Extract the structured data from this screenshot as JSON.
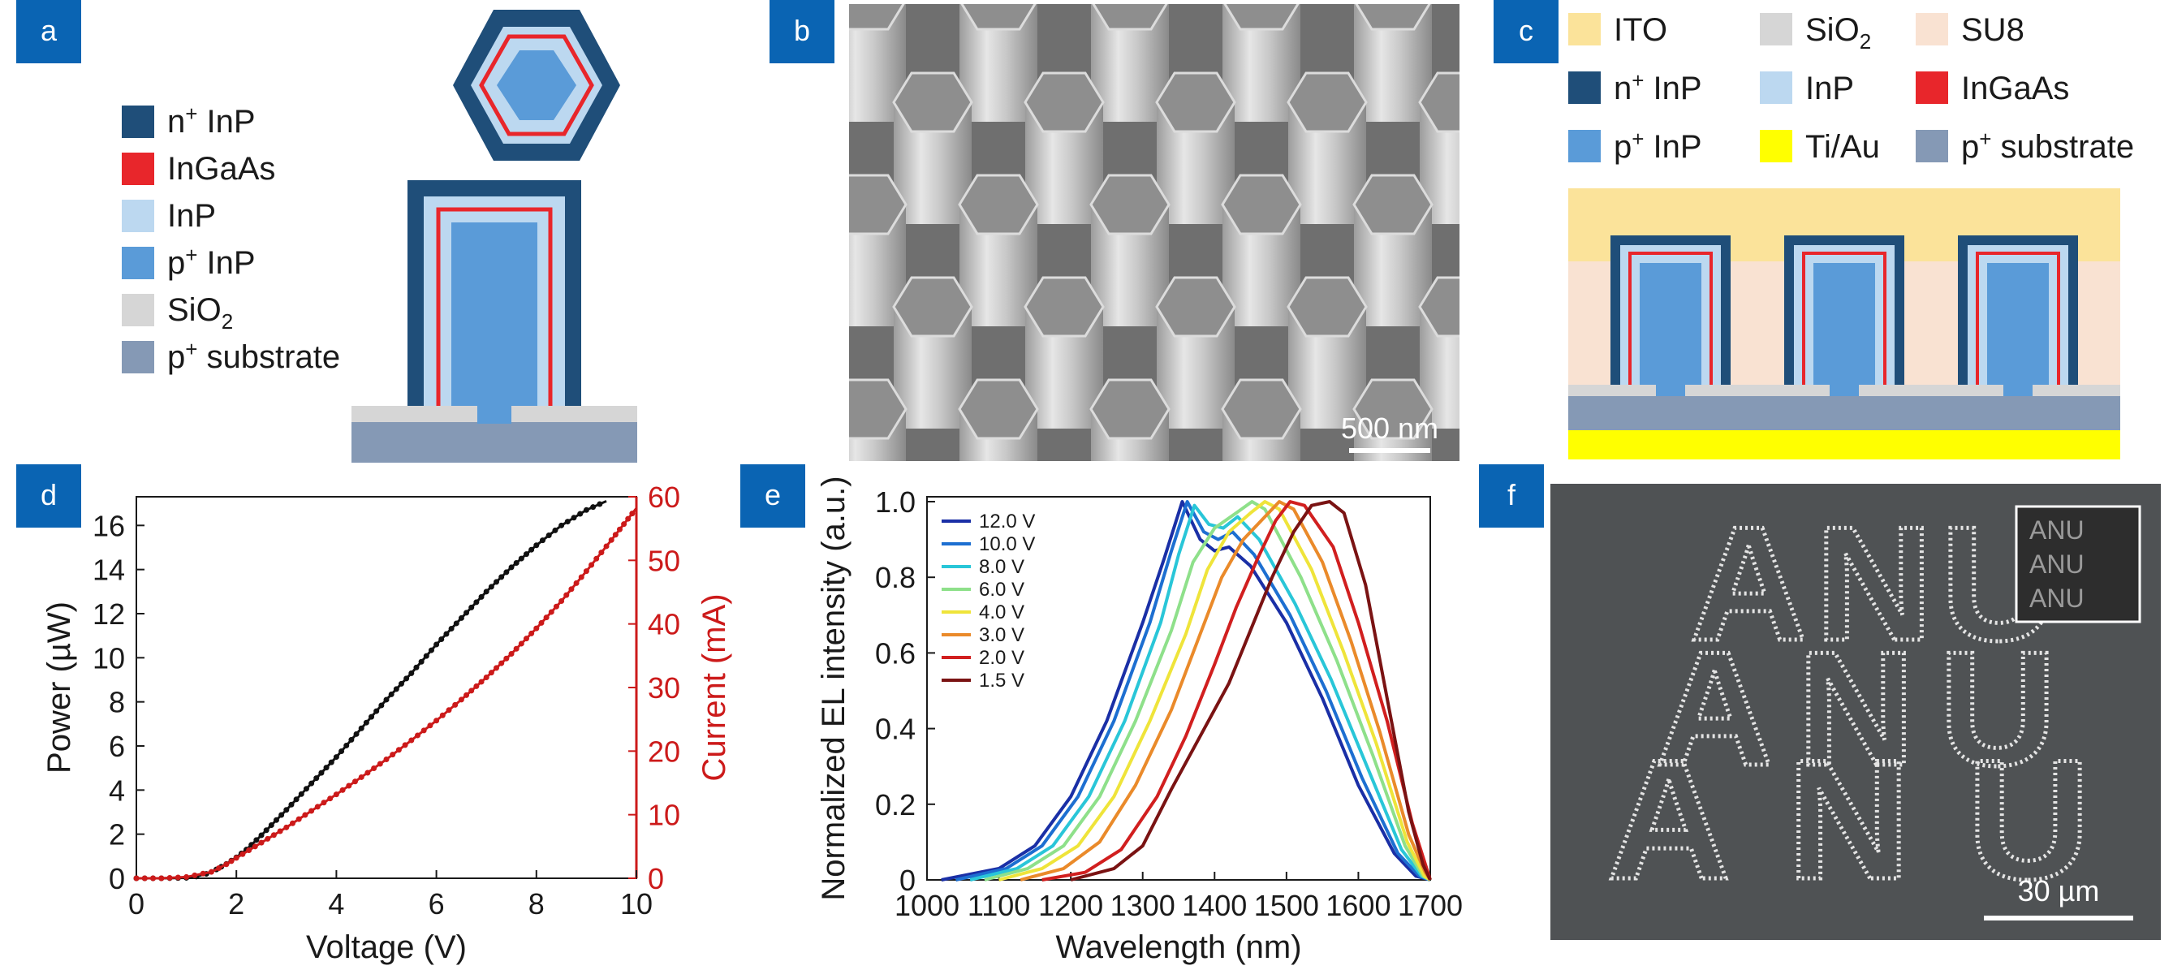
{
  "colors": {
    "n_InP": "#1f4e79",
    "InGaAs": "#e8262b",
    "InP": "#bcd8f0",
    "p_InP": "#5a9bd8",
    "SiO2": "#d6d6d6",
    "p_substrate": "#8599b5",
    "ITO": "#fbe39a",
    "SU8": "#f9e2d2",
    "TiAu": "#ffff00",
    "panel_label_bg": "#0a64b3",
    "power_series": "#111111",
    "current_series": "#cc1a1a"
  },
  "panel_labels": {
    "a": "a",
    "b": "b",
    "c": "c",
    "d": "d",
    "e": "e",
    "f": "f"
  },
  "panel_a": {
    "legend": [
      {
        "main": "n",
        "sup": "+",
        "rest": " InP",
        "sub": "",
        "color_key": "n_InP"
      },
      {
        "main": "InGaAs",
        "sup": "",
        "rest": "",
        "sub": "",
        "color_key": "InGaAs"
      },
      {
        "main": "InP",
        "sup": "",
        "rest": "",
        "sub": "",
        "color_key": "InP"
      },
      {
        "main": "p",
        "sup": "+",
        "rest": " InP",
        "sub": "",
        "color_key": "p_InP"
      },
      {
        "main": "SiO",
        "sup": "",
        "rest": "",
        "sub": "2",
        "color_key": "SiO2"
      },
      {
        "main": "p",
        "sup": "+",
        "rest": " substrate",
        "sub": "",
        "color_key": "p_substrate"
      }
    ]
  },
  "panel_b": {
    "scale_bar": "500 nm"
  },
  "panel_c": {
    "legend": [
      {
        "main": "ITO",
        "sup": "",
        "rest": "",
        "sub": "",
        "color_key": "ITO"
      },
      {
        "main": "SiO",
        "sup": "",
        "rest": "",
        "sub": "2",
        "color_key": "SiO2"
      },
      {
        "main": "SU8",
        "sup": "",
        "rest": "",
        "sub": "",
        "color_key": "SU8"
      },
      {
        "main": "n",
        "sup": "+",
        "rest": " InP",
        "sub": "",
        "color_key": "n_InP"
      },
      {
        "main": "InP",
        "sup": "",
        "rest": "",
        "sub": "",
        "color_key": "InP"
      },
      {
        "main": "InGaAs",
        "sup": "",
        "rest": "",
        "sub": "",
        "color_key": "InGaAs"
      },
      {
        "main": "p",
        "sup": "+",
        "rest": " InP",
        "sub": "",
        "color_key": "p_InP"
      },
      {
        "main": "Ti/Au",
        "sup": "",
        "rest": "",
        "sub": "",
        "color_key": "TiAu"
      },
      {
        "main": "p",
        "sup": "+",
        "rest": " substrate",
        "sub": "",
        "color_key": "p_substrate"
      }
    ]
  },
  "panel_f": {
    "scale_bar": "30 µm",
    "text": "ANU",
    "rows": [
      "ANU",
      "ANU",
      "ANU"
    ]
  },
  "chart_data": [
    {
      "panel": "d",
      "type": "line",
      "xlabel": "Voltage (V)",
      "ylabel": "Power (µW)",
      "y2label": "Current (mA)",
      "xlim": [
        0,
        10
      ],
      "ylim": [
        0,
        17.3
      ],
      "y2lim": [
        0,
        60
      ],
      "xticks": [
        0,
        2,
        4,
        6,
        8,
        10
      ],
      "yticks": [
        0,
        2,
        4,
        6,
        8,
        10,
        12,
        14,
        16
      ],
      "y2ticks": [
        0,
        10,
        20,
        30,
        40,
        50,
        60
      ],
      "series": [
        {
          "axis": "left",
          "color": "#111111",
          "x": [
            0,
            0.5,
            1.0,
            1.2,
            1.4,
            1.6,
            1.8,
            2.0,
            2.2,
            2.5,
            3.0,
            3.5,
            4.0,
            4.5,
            5.0,
            5.5,
            6.0,
            6.5,
            7.0,
            7.5,
            8.0,
            8.5,
            9.0,
            9.4
          ],
          "y": [
            0,
            0,
            0.02,
            0.08,
            0.2,
            0.4,
            0.65,
            0.95,
            1.3,
            1.95,
            3.1,
            4.3,
            5.5,
            6.8,
            8.1,
            9.3,
            10.6,
            11.8,
            13.0,
            14.1,
            15.1,
            16.0,
            16.7,
            17.1
          ]
        },
        {
          "axis": "right",
          "color": "#cc1a1a",
          "x": [
            0,
            0.5,
            1.0,
            1.5,
            1.8,
            2.0,
            2.5,
            3.0,
            3.5,
            4.0,
            4.5,
            5.0,
            5.5,
            6.0,
            6.5,
            7.0,
            7.5,
            8.0,
            8.5,
            9.0,
            9.5,
            10.0
          ],
          "y": [
            0,
            0,
            0.2,
            1.0,
            2.2,
            3.2,
            5.6,
            8.0,
            10.6,
            13.2,
            15.9,
            18.7,
            21.7,
            24.8,
            28.1,
            31.6,
            35.3,
            39.3,
            43.6,
            48.3,
            53.2,
            58.2
          ]
        }
      ]
    },
    {
      "panel": "e",
      "type": "line",
      "xlabel": "Wavelength (nm)",
      "ylabel": "Normalized EL intensity (a.u.)",
      "xlim": [
        1000,
        1700
      ],
      "ylim": [
        0,
        1.0
      ],
      "xticks": [
        1000,
        1100,
        1200,
        1300,
        1400,
        1500,
        1600,
        1700
      ],
      "yticks": [
        0,
        0.2,
        0.4,
        0.6,
        0.8,
        1.0
      ],
      "ytick_labels": [
        "0",
        "0.2",
        "0.4",
        "0.6",
        "0.8",
        "1.0"
      ],
      "legend_position": "top-left",
      "series": [
        {
          "name": "12.0 V",
          "color": "#1a2fa6",
          "x": [
            1020,
            1100,
            1150,
            1200,
            1250,
            1300,
            1330,
            1355,
            1380,
            1400,
            1420,
            1450,
            1500,
            1550,
            1600,
            1650,
            1680,
            1700
          ],
          "y": [
            0,
            0.03,
            0.09,
            0.22,
            0.42,
            0.68,
            0.85,
            1.0,
            0.9,
            0.87,
            0.88,
            0.83,
            0.68,
            0.48,
            0.25,
            0.07,
            0.01,
            0
          ]
        },
        {
          "name": "10.0 V",
          "color": "#1d6fd1",
          "x": [
            1040,
            1110,
            1160,
            1210,
            1260,
            1310,
            1340,
            1362,
            1385,
            1405,
            1425,
            1455,
            1505,
            1555,
            1605,
            1655,
            1685,
            1700
          ],
          "y": [
            0,
            0.03,
            0.09,
            0.22,
            0.42,
            0.68,
            0.87,
            1.0,
            0.92,
            0.9,
            0.92,
            0.86,
            0.7,
            0.5,
            0.27,
            0.07,
            0.01,
            0
          ]
        },
        {
          "name": "8.0 V",
          "color": "#29c6d8",
          "x": [
            1060,
            1125,
            1175,
            1225,
            1275,
            1325,
            1350,
            1372,
            1392,
            1412,
            1432,
            1462,
            1512,
            1562,
            1612,
            1660,
            1688,
            1700
          ],
          "y": [
            0,
            0.03,
            0.09,
            0.22,
            0.42,
            0.68,
            0.86,
            0.99,
            0.94,
            0.93,
            0.96,
            0.9,
            0.73,
            0.53,
            0.3,
            0.08,
            0.01,
            0
          ]
        },
        {
          "name": "6.0 V",
          "color": "#8ee08a",
          "x": [
            1080,
            1140,
            1190,
            1240,
            1290,
            1340,
            1370,
            1400,
            1430,
            1452,
            1470,
            1520,
            1570,
            1620,
            1665,
            1690,
            1700
          ],
          "y": [
            0,
            0.03,
            0.09,
            0.22,
            0.42,
            0.66,
            0.84,
            0.93,
            0.97,
            1.0,
            0.98,
            0.8,
            0.58,
            0.33,
            0.09,
            0.01,
            0
          ]
        },
        {
          "name": "4.0 V",
          "color": "#efe43a",
          "x": [
            1100,
            1160,
            1210,
            1260,
            1310,
            1360,
            1390,
            1420,
            1450,
            1470,
            1490,
            1535,
            1580,
            1625,
            1668,
            1692,
            1700
          ],
          "y": [
            0,
            0.03,
            0.09,
            0.22,
            0.42,
            0.65,
            0.82,
            0.92,
            0.97,
            1.0,
            0.98,
            0.82,
            0.6,
            0.36,
            0.1,
            0.01,
            0
          ]
        },
        {
          "name": "3.0 V",
          "color": "#ea8a2a",
          "x": [
            1130,
            1190,
            1240,
            1290,
            1340,
            1380,
            1410,
            1440,
            1470,
            1490,
            1510,
            1550,
            1590,
            1630,
            1670,
            1693,
            1700
          ],
          "y": [
            0,
            0.03,
            0.1,
            0.25,
            0.45,
            0.65,
            0.8,
            0.9,
            0.96,
            1.0,
            0.98,
            0.84,
            0.63,
            0.39,
            0.12,
            0.02,
            0
          ]
        },
        {
          "name": "2.0 V",
          "color": "#d11f1f",
          "x": [
            1160,
            1220,
            1270,
            1320,
            1360,
            1400,
            1430,
            1460,
            1485,
            1505,
            1525,
            1565,
            1600,
            1640,
            1675,
            1695,
            1700
          ],
          "y": [
            0,
            0.02,
            0.08,
            0.22,
            0.38,
            0.57,
            0.72,
            0.85,
            0.95,
            1.0,
            0.99,
            0.88,
            0.68,
            0.42,
            0.15,
            0.03,
            0
          ]
        },
        {
          "name": "1.5 V",
          "color": "#7a1313",
          "x": [
            1200,
            1260,
            1300,
            1340,
            1380,
            1420,
            1450,
            1480,
            1510,
            1535,
            1560,
            1580,
            1610,
            1640,
            1670,
            1690,
            1700
          ],
          "y": [
            0,
            0.03,
            0.09,
            0.24,
            0.38,
            0.52,
            0.66,
            0.8,
            0.92,
            0.99,
            1.0,
            0.97,
            0.78,
            0.48,
            0.18,
            0.04,
            0
          ]
        }
      ]
    }
  ]
}
